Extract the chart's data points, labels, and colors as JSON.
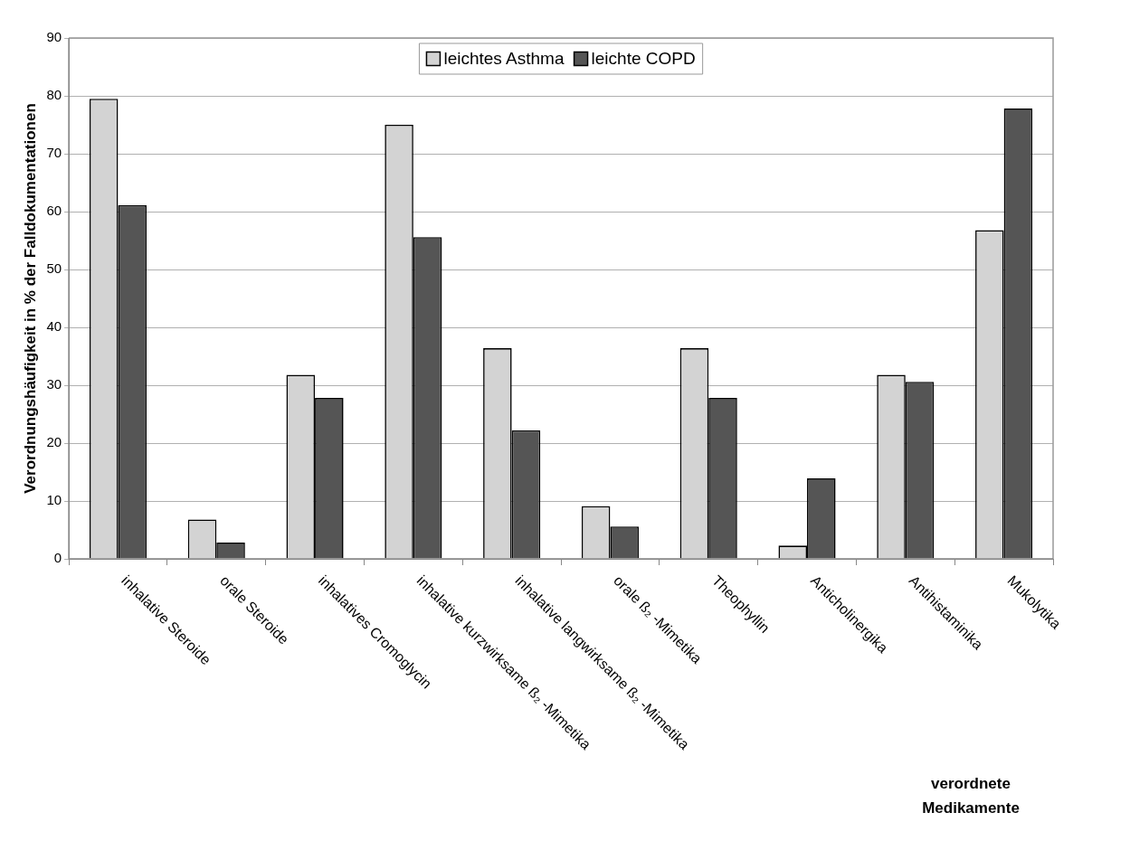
{
  "chart_data": {
    "type": "bar",
    "xlabel": "verordnete Medikamente",
    "ylabel": "Verordnungshäufigkeit in % der Falldokumentationen",
    "categories": [
      "inhalative Steroide",
      "orale Steroide",
      "inhalatives Cromoglycin",
      "inhalative kurzwirksame ß₂ -Mimetika",
      "inhalative langwirksame ß₂ -Mimetika",
      "orale ß₂ -Mimetika",
      "Theophyllin",
      "Anticholinergika",
      "Antihistaminika",
      "Mukolytika"
    ],
    "series": [
      {
        "name": "leichtes Asthma",
        "color": "#d3d3d3",
        "values": [
          79.5,
          6.8,
          31.8,
          75.0,
          36.4,
          9.1,
          36.4,
          2.3,
          31.8,
          56.8
        ]
      },
      {
        "name": "leichte COPD",
        "color": "#555555",
        "values": [
          61.1,
          2.8,
          27.8,
          55.6,
          22.2,
          5.6,
          27.8,
          13.9,
          30.6,
          77.8
        ]
      }
    ],
    "ylim": [
      0,
      90
    ],
    "yticks": [
      0,
      10,
      20,
      30,
      40,
      50,
      60,
      70,
      80,
      90
    ],
    "grid": "y",
    "legend": "top"
  }
}
